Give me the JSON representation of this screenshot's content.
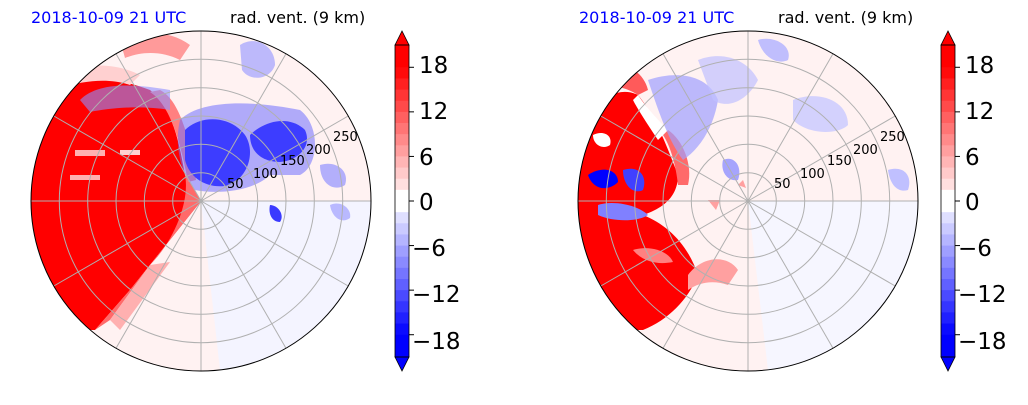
{
  "colors": {
    "date_label": "#0000ff",
    "strong_positive": "#ff0000",
    "strong_negative": "#0000ff",
    "near_zero": "#fff0f0",
    "grid": "#b0b0b0"
  },
  "panels": [
    {
      "id": "left",
      "date_label": "2018-10-09 21 UTC",
      "var_label": "rad. vent. (9 km)"
    },
    {
      "id": "right",
      "date_label": "2018-10-09 21 UTC",
      "var_label": "rad. vent. (9 km)"
    }
  ],
  "chart_data": [
    {
      "type": "heatmap",
      "projection": "polar",
      "radial_ticks": [
        "50",
        "100",
        "150",
        "200",
        "250"
      ],
      "radial_range": [
        0,
        300
      ],
      "angular_gridlines_deg": [
        0,
        30,
        60,
        90,
        120,
        150,
        180,
        210,
        240,
        270,
        300,
        330
      ],
      "colorbar": {
        "ticks": [
          "18",
          "12",
          "6",
          "0",
          "−6",
          "−12",
          "−18"
        ],
        "tick_values": [
          18,
          12,
          6,
          0,
          -6,
          -12,
          -18
        ],
        "range": [
          -21,
          21
        ],
        "extend": "both",
        "levels": 28
      },
      "grid": true
    },
    {
      "type": "heatmap",
      "projection": "polar",
      "radial_ticks": [
        "50",
        "100",
        "150",
        "200",
        "250"
      ],
      "radial_range": [
        0,
        300
      ],
      "angular_gridlines_deg": [
        0,
        30,
        60,
        90,
        120,
        150,
        180,
        210,
        240,
        270,
        300,
        330
      ],
      "colorbar": {
        "ticks": [
          "18",
          "12",
          "6",
          "0",
          "−6",
          "−12",
          "−18"
        ],
        "tick_values": [
          18,
          12,
          6,
          0,
          -6,
          -12,
          -18
        ],
        "range": [
          -21,
          21
        ],
        "extend": "both",
        "levels": 28
      },
      "grid": true
    }
  ]
}
